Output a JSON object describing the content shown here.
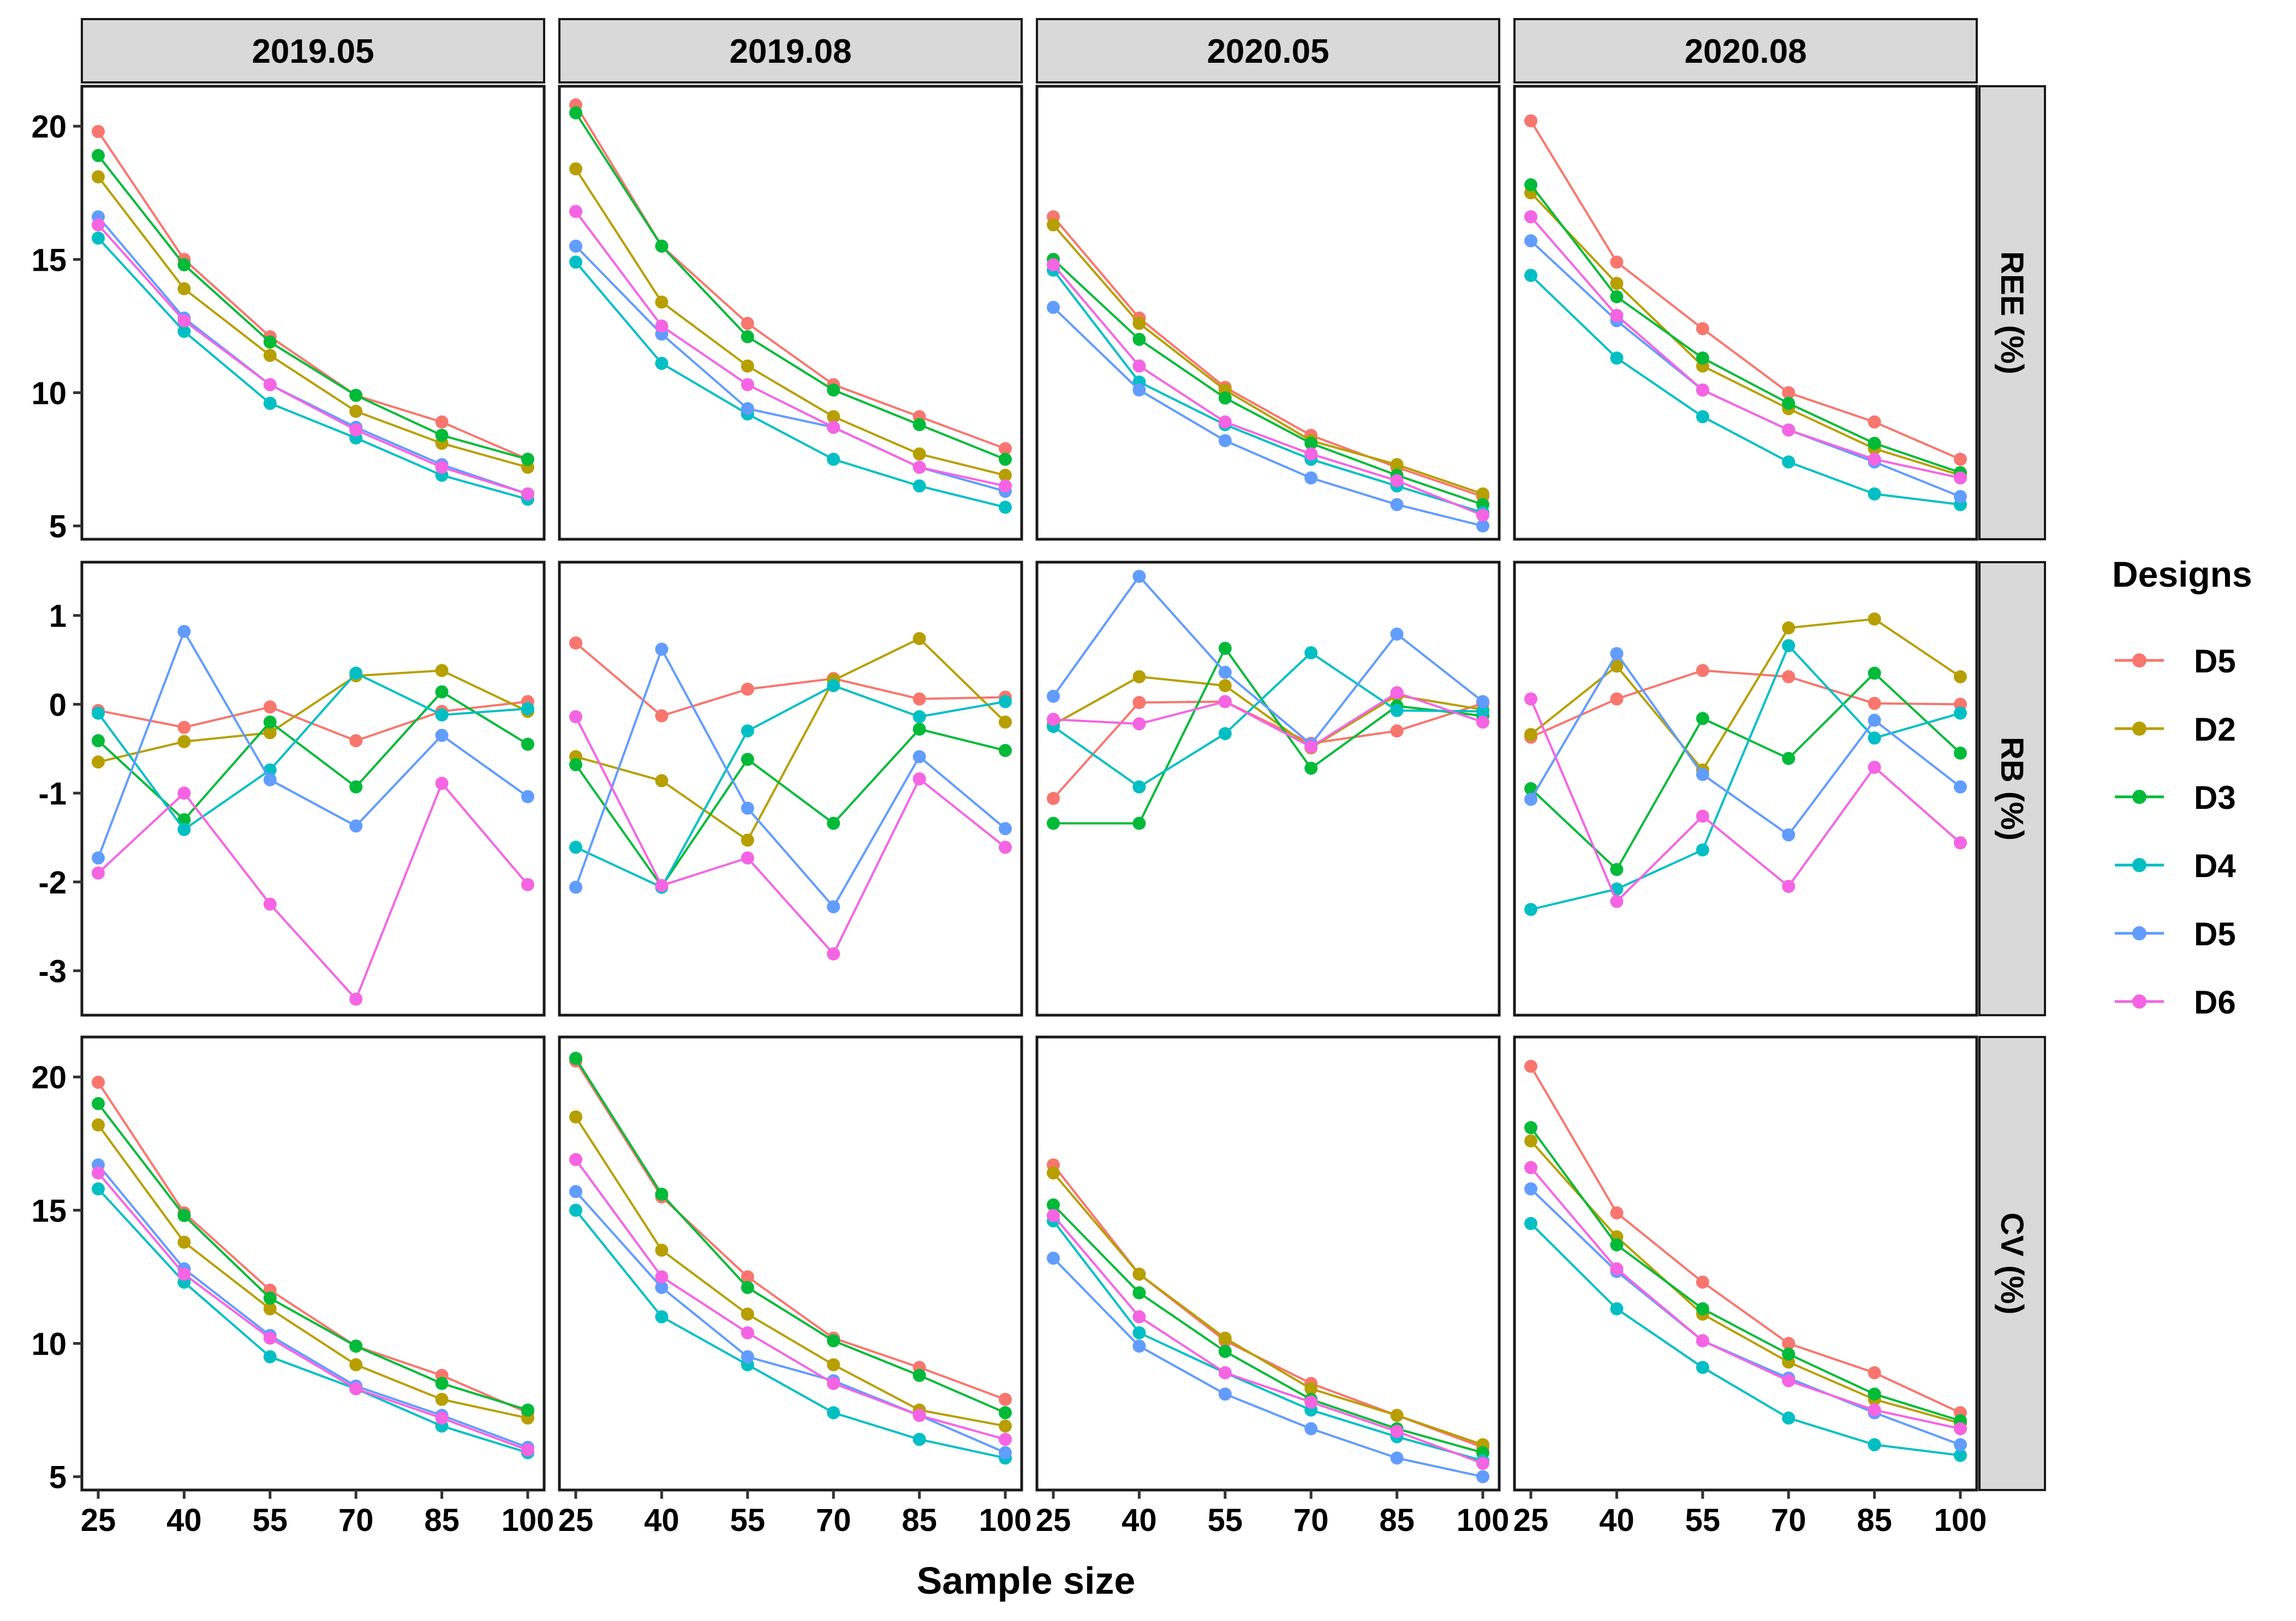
{
  "chart_data": {
    "type": "line",
    "xlabel": "Sample size",
    "legend_title": "Designs",
    "legend_position": "right",
    "x": [
      25,
      40,
      55,
      70,
      85,
      100
    ],
    "columns": [
      "2019.05",
      "2019.08",
      "2020.05",
      "2020.08"
    ],
    "rows": [
      {
        "label": "REE (%)",
        "ylim": [
          4.5,
          21.5
        ],
        "ticks": [
          5,
          10,
          15,
          20
        ]
      },
      {
        "label": "RB (%)",
        "ylim": [
          -3.5,
          1.6
        ],
        "ticks": [
          -3,
          -2,
          -1,
          0,
          1
        ]
      },
      {
        "label": "CV (%)",
        "ylim": [
          4.5,
          21.5
        ],
        "ticks": [
          5,
          10,
          15,
          20
        ]
      }
    ],
    "series": [
      {
        "name": "D5",
        "color": "#F8766D"
      },
      {
        "name": "D2",
        "color": "#B79F00"
      },
      {
        "name": "D3",
        "color": "#00BA38"
      },
      {
        "name": "D4",
        "color": "#00BFC4"
      },
      {
        "name": "D5",
        "color": "#619CFF"
      },
      {
        "name": "D6",
        "color": "#F564E3"
      }
    ],
    "panels": [
      [
        [
          [
            19.8,
            15.0,
            12.1,
            9.9,
            8.9,
            7.5
          ],
          [
            18.1,
            13.9,
            11.4,
            9.3,
            8.1,
            7.2
          ],
          [
            18.9,
            14.8,
            11.9,
            9.9,
            8.4,
            7.5
          ],
          [
            15.8,
            12.3,
            9.6,
            8.3,
            6.9,
            6.0
          ],
          [
            16.6,
            12.8,
            10.3,
            8.7,
            7.3,
            6.2
          ],
          [
            16.3,
            12.7,
            10.3,
            8.6,
            7.2,
            6.2
          ]
        ],
        [
          [
            20.8,
            15.5,
            12.6,
            10.3,
            9.1,
            7.9
          ],
          [
            18.4,
            13.4,
            11.0,
            9.1,
            7.7,
            6.9
          ],
          [
            20.5,
            15.5,
            12.1,
            10.1,
            8.8,
            7.5
          ],
          [
            14.9,
            11.1,
            9.2,
            7.5,
            6.5,
            5.7
          ],
          [
            15.5,
            12.2,
            9.4,
            8.7,
            7.2,
            6.3
          ],
          [
            16.8,
            12.5,
            10.3,
            8.7,
            7.2,
            6.5
          ]
        ],
        [
          [
            16.6,
            12.8,
            10.2,
            8.4,
            7.2,
            6.1
          ],
          [
            16.3,
            12.6,
            10.1,
            8.2,
            7.3,
            6.2
          ],
          [
            15.0,
            12.0,
            9.8,
            8.1,
            6.9,
            5.8
          ],
          [
            14.6,
            10.4,
            8.8,
            7.5,
            6.5,
            5.5
          ],
          [
            13.2,
            10.1,
            8.2,
            6.8,
            5.8,
            5.0
          ],
          [
            14.8,
            11.0,
            8.9,
            7.7,
            6.7,
            5.4
          ]
        ],
        [
          [
            20.2,
            14.9,
            12.4,
            10.0,
            8.9,
            7.5
          ],
          [
            17.5,
            14.1,
            11.0,
            9.4,
            7.9,
            6.9
          ],
          [
            17.8,
            13.6,
            11.3,
            9.6,
            8.1,
            7.0
          ],
          [
            14.4,
            11.3,
            9.1,
            7.4,
            6.2,
            5.8
          ],
          [
            15.7,
            12.7,
            10.1,
            8.6,
            7.4,
            6.1
          ],
          [
            16.6,
            12.9,
            10.1,
            8.6,
            7.5,
            6.8
          ]
        ]
      ],
      [
        [
          [
            -0.07,
            -0.26,
            -0.03,
            -0.41,
            -0.08,
            0.03
          ],
          [
            -0.65,
            -0.42,
            -0.32,
            0.32,
            0.38,
            -0.08
          ],
          [
            -0.41,
            -1.3,
            -0.2,
            -0.93,
            0.14,
            -0.45
          ],
          [
            -0.1,
            -1.41,
            -0.74,
            0.35,
            -0.12,
            -0.05
          ],
          [
            -1.73,
            0.82,
            -0.85,
            -1.37,
            -0.35,
            -1.04
          ],
          [
            -1.9,
            -1.0,
            -2.25,
            -3.32,
            -0.89,
            -2.03
          ]
        ],
        [
          [
            0.69,
            -0.13,
            0.17,
            0.29,
            0.06,
            0.08
          ],
          [
            -0.59,
            -0.86,
            -1.53,
            0.27,
            0.74,
            -0.2
          ],
          [
            -0.68,
            -2.05,
            -0.62,
            -1.34,
            -0.28,
            -0.52
          ],
          [
            -1.61,
            -2.06,
            -0.3,
            0.21,
            -0.14,
            0.03
          ],
          [
            -2.06,
            0.62,
            -1.17,
            -2.28,
            -0.59,
            -1.4
          ],
          [
            -0.14,
            -2.04,
            -1.73,
            -2.81,
            -0.84,
            -1.61
          ]
        ],
        [
          [
            -1.06,
            0.02,
            0.03,
            -0.44,
            -0.3,
            0.01
          ],
          [
            -0.23,
            0.31,
            0.21,
            -0.49,
            0.1,
            -0.06
          ],
          [
            -1.34,
            -1.34,
            0.63,
            -0.72,
            -0.02,
            -0.13
          ],
          [
            -0.25,
            -0.93,
            -0.33,
            0.58,
            -0.07,
            -0.08
          ],
          [
            0.09,
            1.44,
            0.36,
            -0.45,
            0.79,
            0.03
          ],
          [
            -0.17,
            -0.22,
            0.03,
            -0.48,
            0.13,
            -0.2
          ]
        ],
        [
          [
            -0.37,
            0.06,
            0.38,
            0.31,
            0.01,
            0.0
          ],
          [
            -0.34,
            0.43,
            -0.74,
            0.86,
            0.96,
            0.31
          ],
          [
            -0.95,
            -1.86,
            -0.16,
            -0.61,
            0.35,
            -0.55
          ],
          [
            -2.31,
            -2.08,
            -1.64,
            0.66,
            -0.38,
            -0.1
          ],
          [
            -1.07,
            0.57,
            -0.79,
            -1.47,
            -0.18,
            -0.93
          ],
          [
            0.06,
            -2.22,
            -1.26,
            -2.05,
            -0.71,
            -1.56
          ]
        ]
      ],
      [
        [
          [
            19.8,
            14.9,
            12.0,
            9.9,
            8.8,
            7.4
          ],
          [
            18.2,
            13.8,
            11.3,
            9.2,
            7.9,
            7.2
          ],
          [
            19.0,
            14.8,
            11.7,
            9.9,
            8.5,
            7.5
          ],
          [
            15.8,
            12.3,
            9.5,
            8.3,
            6.9,
            5.9
          ],
          [
            16.7,
            12.8,
            10.3,
            8.4,
            7.3,
            6.1
          ],
          [
            16.4,
            12.6,
            10.2,
            8.3,
            7.2,
            6.0
          ]
        ],
        [
          [
            20.6,
            15.5,
            12.5,
            10.2,
            9.1,
            7.9
          ],
          [
            18.5,
            13.5,
            11.1,
            9.2,
            7.5,
            6.9
          ],
          [
            20.7,
            15.6,
            12.1,
            10.1,
            8.8,
            7.4
          ],
          [
            15.0,
            11.0,
            9.2,
            7.4,
            6.4,
            5.7
          ],
          [
            15.7,
            12.1,
            9.5,
            8.6,
            7.3,
            5.9
          ],
          [
            16.9,
            12.5,
            10.4,
            8.5,
            7.3,
            6.4
          ]
        ],
        [
          [
            16.7,
            12.6,
            10.1,
            8.5,
            7.3,
            6.1
          ],
          [
            16.4,
            12.6,
            10.2,
            8.3,
            7.3,
            6.2
          ],
          [
            15.2,
            11.9,
            9.7,
            7.9,
            6.8,
            5.9
          ],
          [
            14.6,
            10.4,
            8.9,
            7.5,
            6.5,
            5.6
          ],
          [
            13.2,
            9.9,
            8.1,
            6.8,
            5.7,
            5.0
          ],
          [
            14.8,
            11.0,
            8.9,
            7.8,
            6.7,
            5.5
          ]
        ],
        [
          [
            20.4,
            14.9,
            12.3,
            10.0,
            8.9,
            7.4
          ],
          [
            17.6,
            14.0,
            11.1,
            9.3,
            7.9,
            7.0
          ],
          [
            18.1,
            13.7,
            11.3,
            9.6,
            8.1,
            7.1
          ],
          [
            14.5,
            11.3,
            9.1,
            7.2,
            6.2,
            5.8
          ],
          [
            15.8,
            12.7,
            10.1,
            8.7,
            7.4,
            6.2
          ],
          [
            16.6,
            12.8,
            10.1,
            8.6,
            7.5,
            6.8
          ]
        ]
      ]
    ]
  }
}
